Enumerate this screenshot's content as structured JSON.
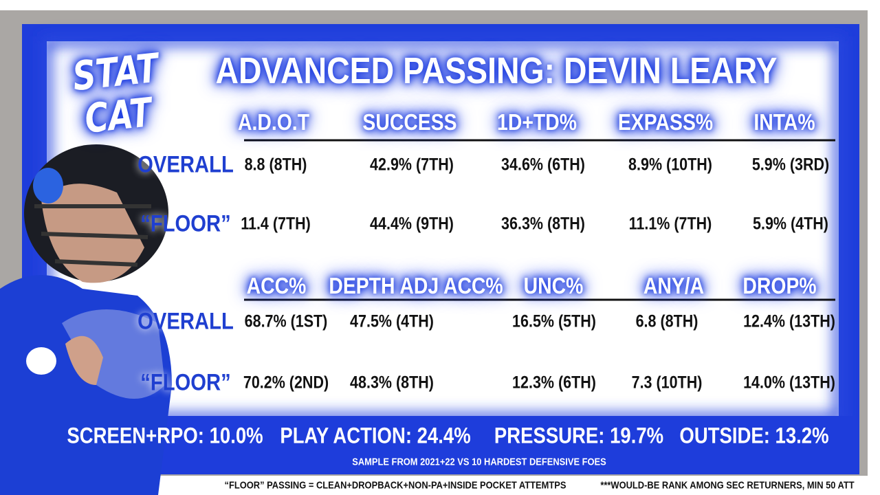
{
  "logo": [
    "STAT",
    "CAT"
  ],
  "title": "ADVANCED PASSING: DEVIN LEARY",
  "sections": [
    {
      "headers": [
        "A.D.O.T",
        "SUCCESS",
        "1D+TD%",
        "EXPASS%",
        "INTA%"
      ],
      "rows": [
        {
          "label": "OVERALL",
          "cells": [
            "8.8 (8TH)",
            "42.9% (7TH)",
            "34.6% (6TH)",
            "8.9% (10TH)",
            "5.9% (3RD)"
          ]
        },
        {
          "label": "“FLOOR”",
          "cells": [
            "11.4 (7TH)",
            "44.4% (9TH)",
            "36.3% (8TH)",
            "11.1% (7TH)",
            "5.9% (4TH)"
          ]
        }
      ]
    },
    {
      "headers": [
        "ACC%",
        "DEPTH ADJ ACC%",
        "UNC%",
        "ANY/A",
        "DROP%"
      ],
      "rows": [
        {
          "label": "OVERALL",
          "cells": [
            "68.7% (1ST)",
            "47.5% (4TH)",
            "16.5% (5TH)",
            "6.8 (8TH)",
            "12.4% (13TH)"
          ]
        },
        {
          "label": "“FLOOR”",
          "cells": [
            "70.2% (2ND)",
            "48.3% (8TH)",
            "12.3% (6TH)",
            "7.3 (10TH)",
            "14.0% (13TH)"
          ]
        }
      ]
    }
  ],
  "summary": [
    "SCREEN+RPO: 10.0%",
    "PLAY ACTION: 24.4%",
    "PRESSURE: 19.7%",
    "OUTSIDE: 13.2%"
  ],
  "sample_note": "SAMPLE FROM 2021+22 VS 10 HARDEST DEFENSIVE FOES",
  "footnotes": [
    "“FLOOR” PASSING = CLEAN+DROPBACK+NON-PA+INSIDE POCKET ATTEMTPS",
    "***WOULD-BE RANK AMONG SEC RETURNERS,  MIN 50 ATT"
  ]
}
